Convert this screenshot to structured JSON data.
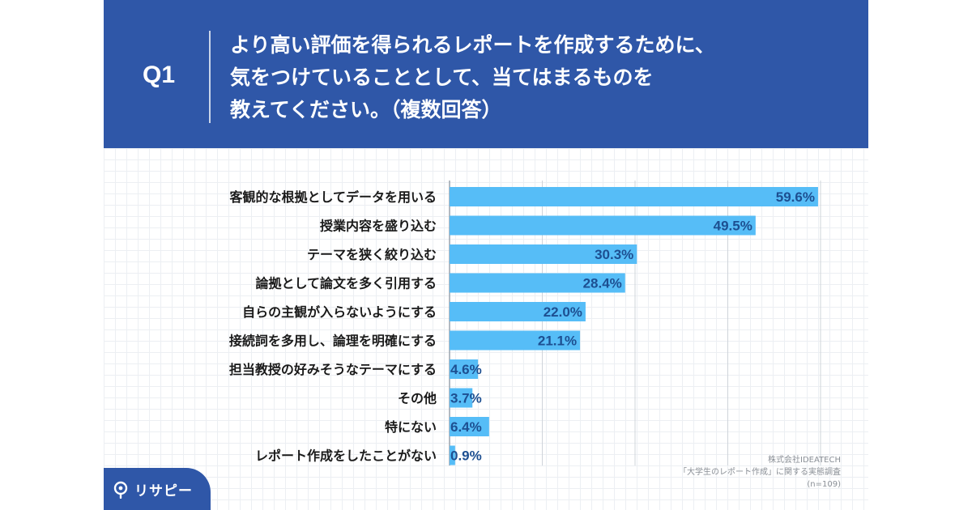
{
  "header": {
    "q_label": "Q1",
    "question_lines": [
      "より高い評価を得られるレポートを作成するために、",
      "気をつけていることとして、当てはまるものを",
      "教えてください。（複数回答）"
    ]
  },
  "colors": {
    "brand": "#2f57a8",
    "bar": "#56bdf7",
    "value_text": "#1d4f91"
  },
  "chart_data": {
    "type": "bar",
    "orientation": "horizontal",
    "categories": [
      "客観的な根拠としてデータを用いる",
      "授業内容を盛り込む",
      "テーマを狭く絞り込む",
      "論拠として論文を多く引用する",
      "自らの主観が入らないようにする",
      "接続詞を多用し、論理を明確にする",
      "担当教授の好みそうなテーマにする",
      "その他",
      "特にない",
      "レポート作成をしたことがない"
    ],
    "values": [
      59.6,
      49.5,
      30.3,
      28.4,
      22.0,
      21.1,
      4.6,
      3.7,
      6.4,
      0.9
    ],
    "value_labels": [
      "59.6%",
      "49.5%",
      "30.3%",
      "28.4%",
      "22.0%",
      "21.1%",
      "4.6%",
      "3.7%",
      "6.4%",
      "0.9%"
    ],
    "xlim": [
      0,
      60
    ],
    "gridlines": [
      0,
      15,
      30,
      45,
      60
    ],
    "grid": true,
    "legend": "none"
  },
  "credit": {
    "company": "株式会社IDEATECH",
    "survey": "「大学生のレポート作成」に関する実態調査",
    "n": "(n=109)"
  },
  "logo": {
    "text": "リサピー",
    "icon": "pin-icon"
  }
}
